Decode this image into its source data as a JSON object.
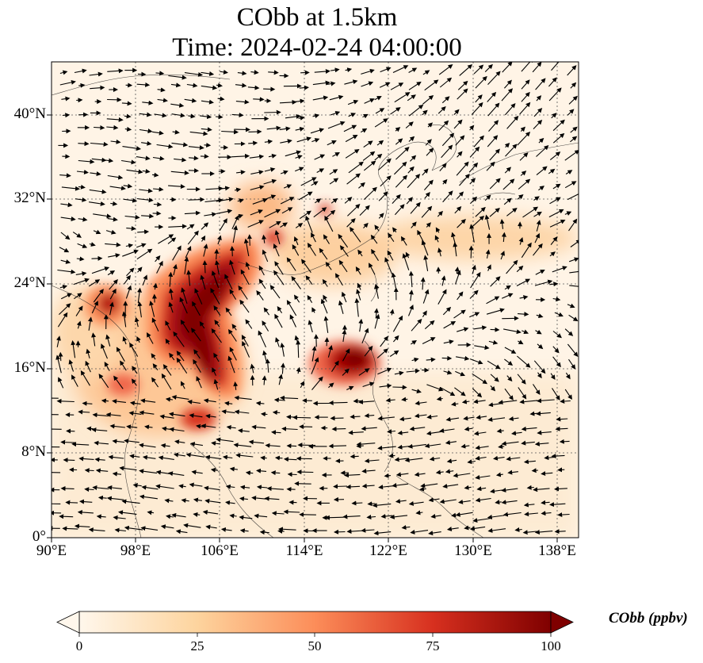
{
  "title": {
    "line1": "CObb at 1.5km",
    "line2": "Time: 2024-02-24 04:00:00"
  },
  "map": {
    "variable": "CObb",
    "height_label": "1.5km",
    "lon_range": [
      90,
      140
    ],
    "lat_range": [
      0,
      45
    ],
    "lon_ticks": [
      "90°E",
      "98°E",
      "106°E",
      "114°E",
      "122°E",
      "130°E",
      "138°E"
    ],
    "lat_ticks": [
      "0°",
      "8°N",
      "16°N",
      "24°N",
      "32°N",
      "40°N"
    ],
    "gridlines": "dotted",
    "overlay": "wind vectors (arrows)",
    "colormap": "OrRd",
    "high_concentration_regions": [
      {
        "name": "Indochina / South China plume",
        "approx_lon": 104,
        "approx_lat": 20,
        "level": "high (>75 ppbv)"
      },
      {
        "name": "Northern Philippines / Luzon Strait",
        "approx_lon": 118.5,
        "approx_lat": 16.5,
        "level": "high (>75 ppbv)"
      },
      {
        "name": "Myanmar",
        "approx_lon": 95,
        "approx_lat": 21.5,
        "level": "moderate to high"
      },
      {
        "name": "Western Pacific band",
        "approx_lon": 128,
        "approx_lat": 28,
        "level": "low (~15-25 ppbv)"
      }
    ]
  },
  "colorbar": {
    "label": "CObb (ppbv)",
    "ticks": [
      "0",
      "25",
      "50",
      "75",
      "100"
    ],
    "min": 0,
    "max": 100,
    "extend": "both",
    "colors": [
      "#fff7ec",
      "#fdd49e",
      "#fc8d59",
      "#d7301f",
      "#7f0000"
    ]
  }
}
